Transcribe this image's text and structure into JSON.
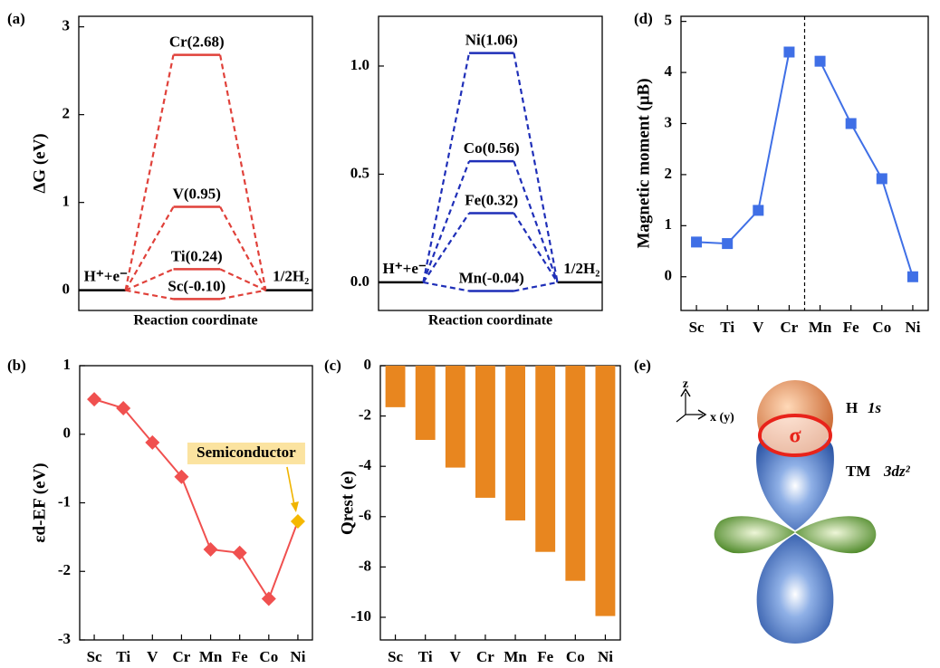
{
  "chart_data": [
    {
      "type": "energy",
      "label": "(a)",
      "ylabel": "ΔG (eV)",
      "xlabel": "Reaction coordinate",
      "color": "#e0413a",
      "start_label": "H⁺+e⁻",
      "end_label": "1/2H₂",
      "values": [
        -0.1,
        0.24,
        0.95,
        2.68
      ],
      "value_labels": [
        "Sc(-0.10)",
        "Ti(0.24)",
        "V(0.95)",
        "Cr(2.68)"
      ],
      "ylim": [
        -0.23,
        3.12
      ],
      "yticks": [
        0,
        1,
        2,
        3
      ]
    },
    {
      "type": "energy",
      "xlabel": "Reaction coordinate",
      "color": "#1f2fb8",
      "start_label": "H⁺+e⁻",
      "end_label": "1/2H₂",
      "values": [
        -0.04,
        0.32,
        0.56,
        1.06
      ],
      "value_labels": [
        "Mn(-0.04)",
        "Fe(0.32)",
        "Co(0.56)",
        "Ni(1.06)"
      ],
      "ylim": [
        -0.13,
        1.23
      ],
      "yticks": [
        {
          "value": 0,
          "label": "0.0"
        },
        {
          "value": 0.5,
          "label": "0.5"
        },
        {
          "value": 1,
          "label": "1.0"
        }
      ]
    },
    {
      "type": "line",
      "label": "(d)",
      "ylabel": "Magnetic moment (μB)",
      "marker": "square",
      "categories": [
        "Sc",
        "Ti",
        "V",
        "Cr",
        "Mn",
        "Fe",
        "Co",
        "Ni"
      ],
      "series": [
        {
          "color": "#3f6fe6",
          "values": [
            0.68,
            0.65,
            1.3,
            4.4,
            null,
            null,
            null,
            null
          ]
        },
        {
          "color": "#3f6fe6",
          "values": [
            null,
            null,
            null,
            null,
            4.22,
            3.0,
            1.92,
            0.0
          ]
        }
      ],
      "ylim": [
        -0.66,
        5.1
      ],
      "yticks": [
        0,
        1,
        2,
        3,
        4,
        5
      ]
    },
    {
      "type": "line",
      "label": "(b)",
      "ylabel": "εd-EF (eV)",
      "marker": "diamond",
      "annotation": "Semiconductor",
      "categories": [
        "Sc",
        "Ti",
        "V",
        "Cr",
        "Mn",
        "Fe",
        "Co",
        "Ni"
      ],
      "series": [
        {
          "color": "#f0504f",
          "point_colors": [
            "#f0504f",
            "#f0504f",
            "#f0504f",
            "#f0504f",
            "#f0504f",
            "#f0504f",
            "#f0504f",
            "#f5b800"
          ],
          "values": [
            0.51,
            0.38,
            -0.12,
            -0.62,
            -1.68,
            -1.73,
            -2.4,
            -1.27
          ]
        }
      ],
      "ylim": [
        -3,
        1
      ],
      "yticks": [
        -3,
        -2,
        -1,
        0,
        1
      ]
    },
    {
      "type": "bar",
      "label": "(c)",
      "ylabel": "Qrest (e)",
      "color": "#e8861f",
      "categories": [
        "Sc",
        "Ti",
        "V",
        "Cr",
        "Mn",
        "Fe",
        "Co",
        "Ni"
      ],
      "values": [
        -1.65,
        -2.95,
        -4.05,
        -5.25,
        -6.15,
        -7.4,
        -8.55,
        -9.95
      ],
      "ylim": [
        -10.9,
        0
      ],
      "yticks": [
        -10,
        -8,
        -6,
        -4,
        -2,
        0
      ]
    }
  ],
  "diagram": {
    "label": "(e)",
    "z_axis": "z",
    "x_axis": "x (y)",
    "sigma": "σ",
    "h_atom": "H",
    "h_orbital": "1s",
    "tm_atom": "TM",
    "tm_orbital": "3dz²"
  }
}
